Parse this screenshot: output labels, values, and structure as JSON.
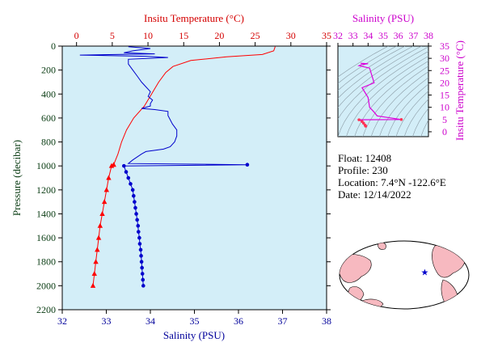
{
  "float_info": {
    "float_line": "Float:  12408",
    "profile_line": "Profile:  230",
    "location_line": "Location:  7.4°N  -122.6°E",
    "date_line": "Date:  12/14/2022"
  },
  "colors": {
    "temperature": "#ff0000",
    "salinity": "#0000cc",
    "ts": "#dd00dd",
    "panel": "#d3eef8",
    "land": "#f7b9c0"
  },
  "chart_data": [
    {
      "type": "line",
      "name": "profile",
      "title_top": "Insitu Temperature (°C)",
      "xlabel_bottom": "Salinity (PSU)",
      "ylabel": "Pressure (decibar)",
      "top_axis": {
        "range": [
          -2,
          35
        ],
        "ticks": [
          0,
          5,
          10,
          15,
          20,
          25,
          30,
          35
        ]
      },
      "bottom_axis": {
        "range": [
          32,
          38
        ],
        "ticks": [
          32,
          33,
          34,
          35,
          36,
          37,
          38
        ]
      },
      "y_axis": {
        "range": [
          0,
          2200
        ],
        "ticks": [
          0,
          200,
          400,
          600,
          800,
          1000,
          1200,
          1400,
          1600,
          1800,
          2000,
          2200
        ],
        "inverted": true
      },
      "temperature_series": [
        [
          27.8,
          5
        ],
        [
          27.6,
          40
        ],
        [
          26,
          70
        ],
        [
          21,
          90
        ],
        [
          16,
          120
        ],
        [
          13.5,
          170
        ],
        [
          12.5,
          220
        ],
        [
          11.5,
          300
        ],
        [
          10.5,
          400
        ],
        [
          9.5,
          500
        ],
        [
          8,
          600
        ],
        [
          7,
          700
        ],
        [
          6.3,
          800
        ],
        [
          5.8,
          900
        ],
        [
          5.2,
          990
        ],
        [
          4.9,
          1000
        ],
        [
          4.5,
          1100
        ],
        [
          4.2,
          1200
        ],
        [
          3.9,
          1300
        ],
        [
          3.6,
          1400
        ],
        [
          3.3,
          1500
        ],
        [
          3.1,
          1600
        ],
        [
          2.9,
          1700
        ],
        [
          2.7,
          1800
        ],
        [
          2.5,
          1900
        ],
        [
          2.3,
          2000
        ]
      ],
      "temperature_marked_from": 990,
      "salinity_series": [
        [
          33.5,
          5
        ],
        [
          34.0,
          20
        ],
        [
          33.6,
          40
        ],
        [
          33.4,
          55
        ],
        [
          34.1,
          65
        ],
        [
          32.4,
          75
        ],
        [
          33.9,
          85
        ],
        [
          34.4,
          95
        ],
        [
          33.5,
          110
        ],
        [
          33.5,
          150
        ],
        [
          33.6,
          200
        ],
        [
          33.7,
          250
        ],
        [
          33.8,
          300
        ],
        [
          33.9,
          340
        ],
        [
          34.0,
          380
        ],
        [
          33.95,
          420
        ],
        [
          34.05,
          450
        ],
        [
          34.0,
          480
        ],
        [
          34.0,
          500
        ],
        [
          33.8,
          520
        ],
        [
          34.1,
          530
        ],
        [
          34.4,
          545
        ],
        [
          34.4,
          580
        ],
        [
          34.5,
          650
        ],
        [
          34.6,
          700
        ],
        [
          34.6,
          750
        ],
        [
          34.55,
          800
        ],
        [
          34.45,
          840
        ],
        [
          34.3,
          860
        ],
        [
          34.1,
          870
        ],
        [
          33.9,
          880
        ],
        [
          33.8,
          900
        ],
        [
          33.6,
          950
        ],
        [
          33.5,
          980
        ],
        [
          36.2,
          990
        ],
        [
          33.4,
          1000
        ],
        [
          33.45,
          1050
        ],
        [
          33.5,
          1100
        ],
        [
          33.55,
          1150
        ],
        [
          33.6,
          1200
        ],
        [
          33.62,
          1250
        ],
        [
          33.64,
          1300
        ],
        [
          33.66,
          1350
        ],
        [
          33.68,
          1400
        ],
        [
          33.7,
          1450
        ],
        [
          33.72,
          1500
        ],
        [
          33.73,
          1550
        ],
        [
          33.75,
          1600
        ],
        [
          33.76,
          1650
        ],
        [
          33.78,
          1700
        ],
        [
          33.79,
          1750
        ],
        [
          33.8,
          1800
        ],
        [
          33.81,
          1850
        ],
        [
          33.82,
          1900
        ],
        [
          33.83,
          1950
        ],
        [
          33.84,
          2000
        ]
      ],
      "salinity_marked_from": 990
    },
    {
      "type": "line",
      "name": "ts-diagram",
      "title": "Salinity (PSU)",
      "ylabel": "Insitu Temperature (°C)",
      "x_axis": {
        "range": [
          32,
          38
        ],
        "ticks": [
          32,
          33,
          34,
          35,
          36,
          37,
          38
        ]
      },
      "y_axis": {
        "range": [
          -2,
          35
        ],
        "ticks": [
          0,
          5,
          10,
          15,
          20,
          25,
          30,
          35
        ]
      },
      "series": [
        [
          33.5,
          28
        ],
        [
          34.0,
          27.8
        ],
        [
          33.6,
          27.5
        ],
        [
          33.4,
          27
        ],
        [
          34.1,
          26
        ],
        [
          34.4,
          20
        ],
        [
          33.6,
          18
        ],
        [
          33.8,
          16
        ],
        [
          34.0,
          14
        ],
        [
          34.1,
          10
        ],
        [
          34.4,
          8
        ],
        [
          34.6,
          6.5
        ],
        [
          36.2,
          5
        ],
        [
          33.4,
          4.9
        ],
        [
          33.6,
          4.2
        ],
        [
          33.7,
          3.5
        ],
        [
          33.8,
          2.7
        ],
        [
          33.84,
          2.3
        ]
      ]
    },
    {
      "type": "map",
      "name": "location-map",
      "marker": {
        "lat": 7.4,
        "lon": -122.6
      }
    }
  ]
}
